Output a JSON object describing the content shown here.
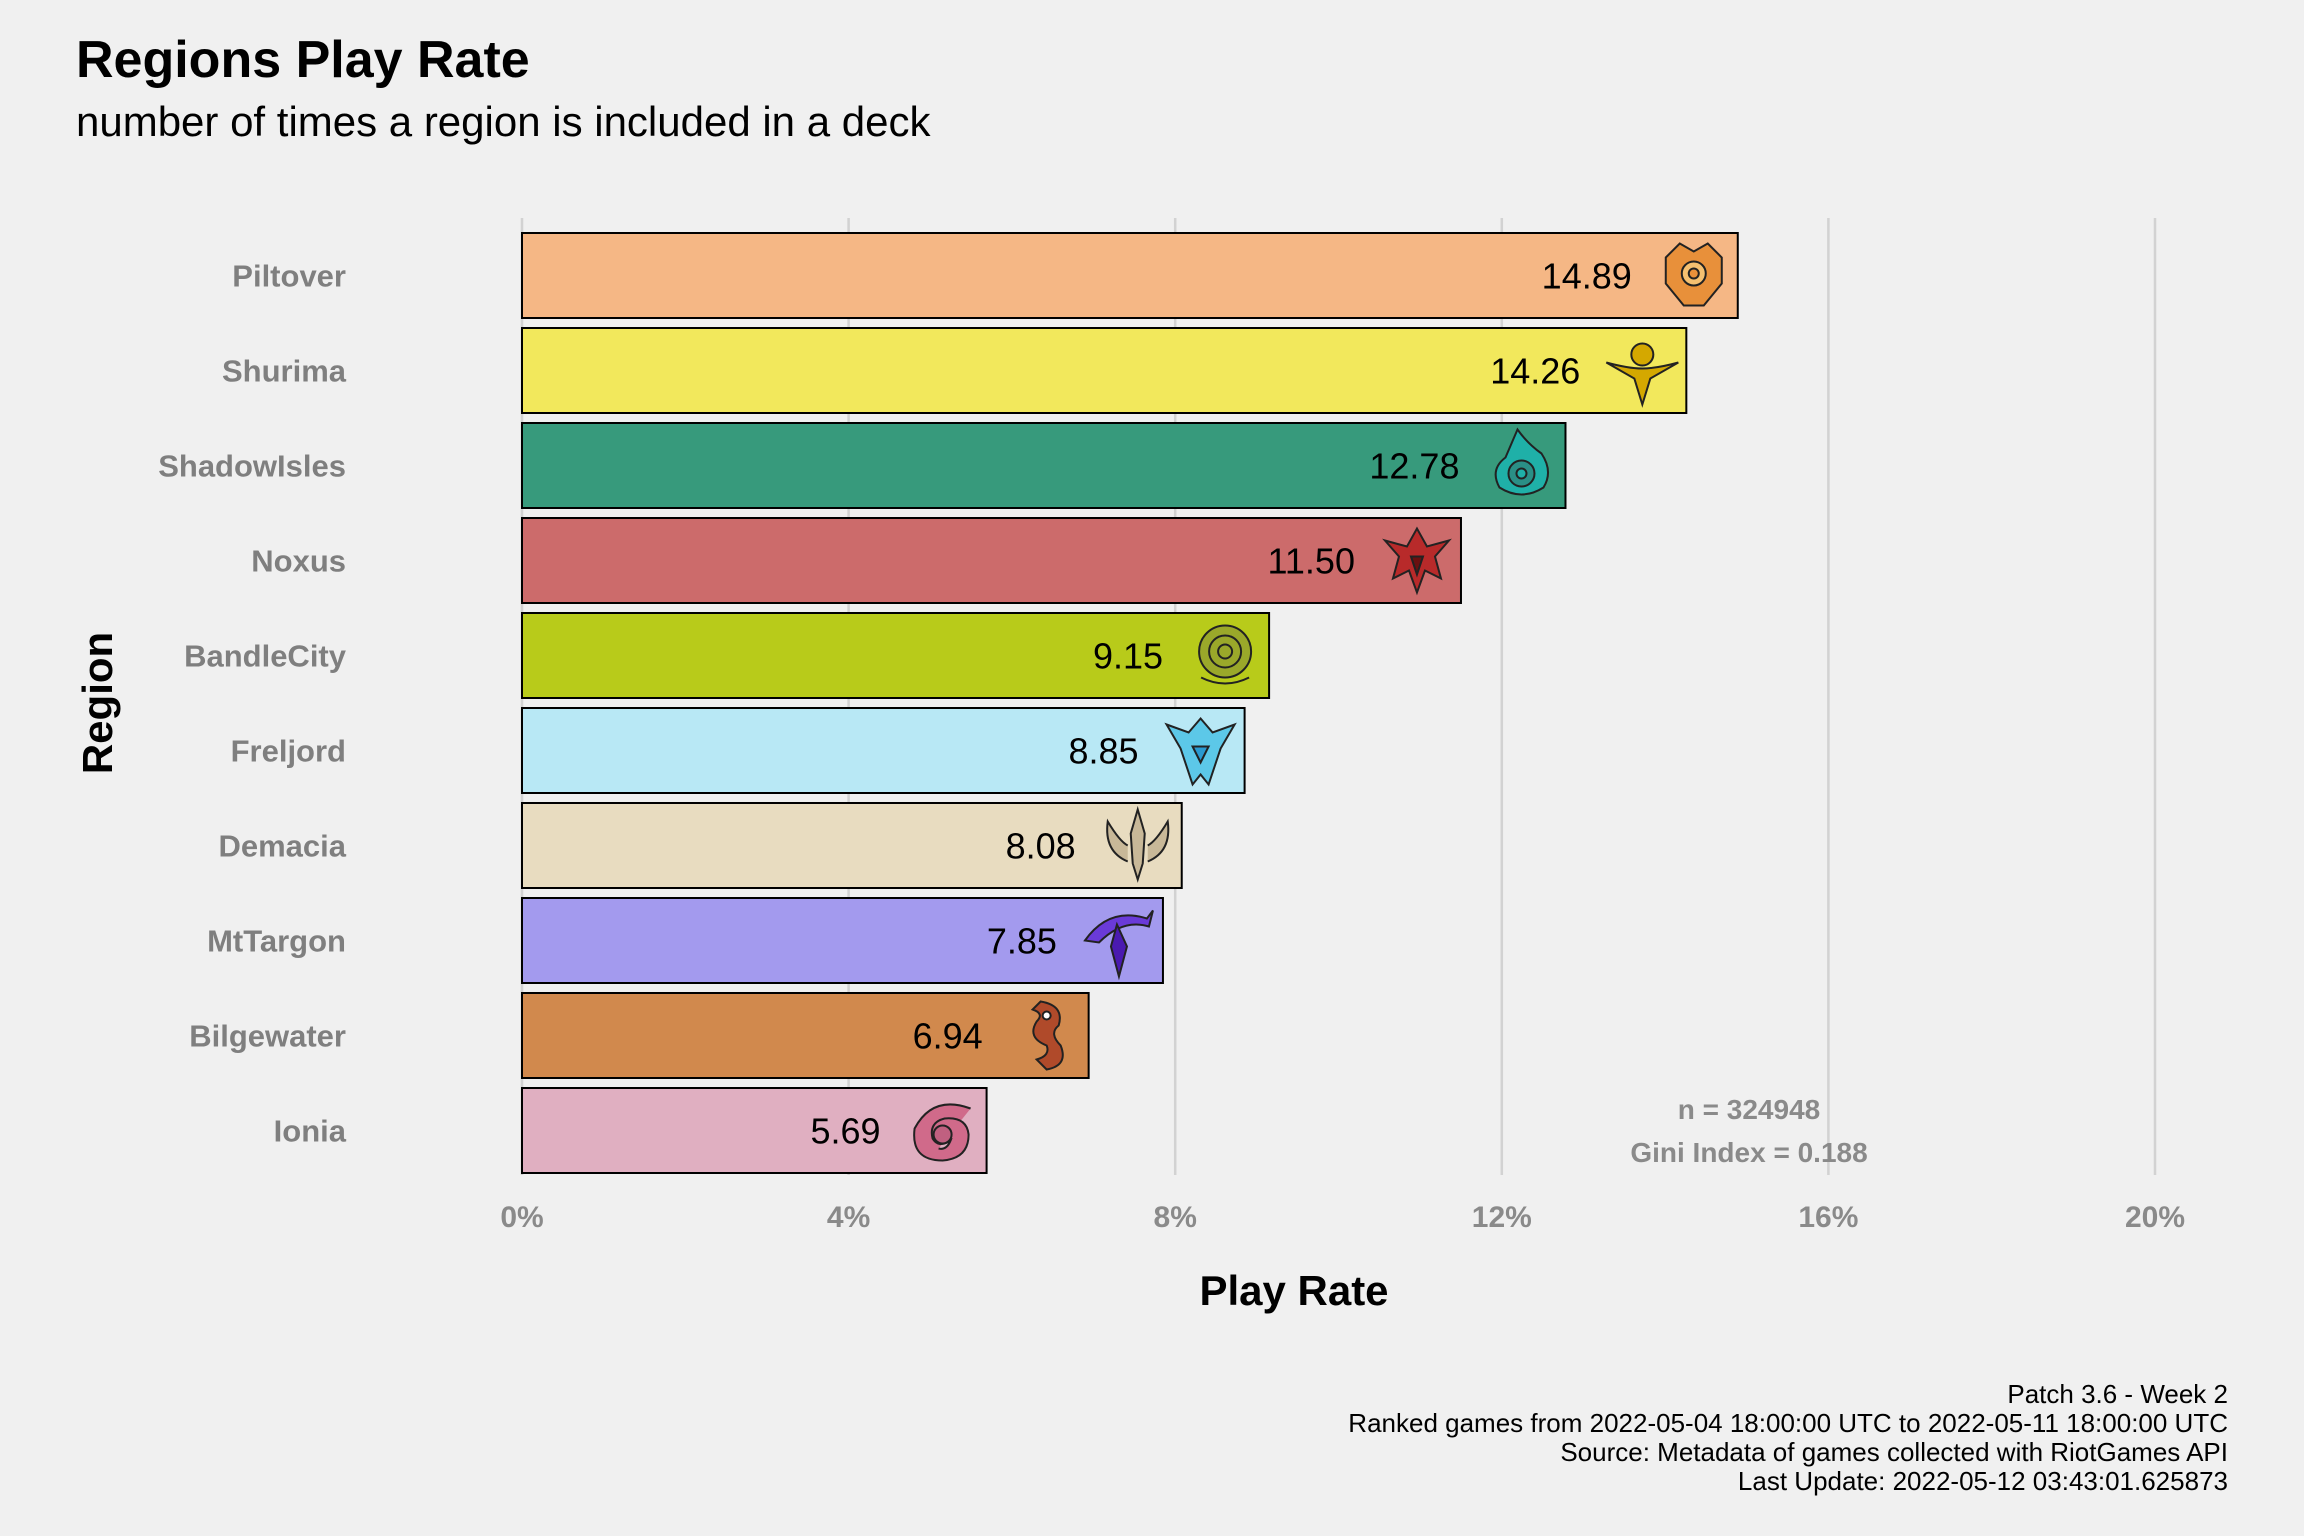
{
  "chart_data": {
    "type": "bar",
    "orientation": "horizontal",
    "title": "Regions Play Rate",
    "subtitle": "number of times a region is included in a deck",
    "xlabel": "Play Rate",
    "ylabel": "Region",
    "xlim": [
      0,
      20
    ],
    "x_ticks": [
      "0%",
      "4%",
      "8%",
      "12%",
      "16%",
      "20%"
    ],
    "x_tick_values": [
      0,
      4,
      8,
      12,
      16,
      20
    ],
    "grid": "vertical major lines",
    "categories": [
      "Piltover",
      "Shurima",
      "ShadowIsles",
      "Noxus",
      "BandleCity",
      "Freljord",
      "Demacia",
      "MtTargon",
      "Bilgewater",
      "Ionia"
    ],
    "values": [
      14.89,
      14.26,
      12.78,
      11.5,
      9.15,
      8.85,
      8.08,
      7.85,
      6.94,
      5.69
    ],
    "value_labels": [
      "14.89",
      "14.26",
      "12.78",
      "11.50",
      "9.15",
      "8.85",
      "8.08",
      "7.85",
      "6.94",
      "5.69"
    ],
    "colors": [
      "#f5b785",
      "#f2e85c",
      "#379a7c",
      "#cc6b6b",
      "#b8cb1a",
      "#b8e8f5",
      "#e8dcc0",
      "#a39aee",
      "#d1894d",
      "#e0afc1"
    ],
    "icon_colors": [
      "#e8903a",
      "#d4a800",
      "#1fb0a8",
      "#b82a2a",
      "#9aa82a",
      "#5cc8e8",
      "#c8b898",
      "#6a3ad8",
      "#b04a2a",
      "#d06a8a"
    ],
    "icons": [
      "piltover-icon",
      "shurima-icon",
      "shadowisles-icon",
      "noxus-icon",
      "bandlecity-icon",
      "freljord-icon",
      "demacia-icon",
      "mttargon-icon",
      "bilgewater-icon",
      "ionia-icon"
    ],
    "annotations": [
      "n = 324948",
      "Gini Index = 0.188"
    ]
  },
  "caption": [
    "Patch 3.6 - Week 2",
    "Ranked games from 2022-05-04 18:00:00 UTC to 2022-05-11 18:00:00 UTC",
    "Source: Metadata of games collected with RiotGames API",
    "Last Update: 2022-05-12 03:43:01.625873"
  ]
}
